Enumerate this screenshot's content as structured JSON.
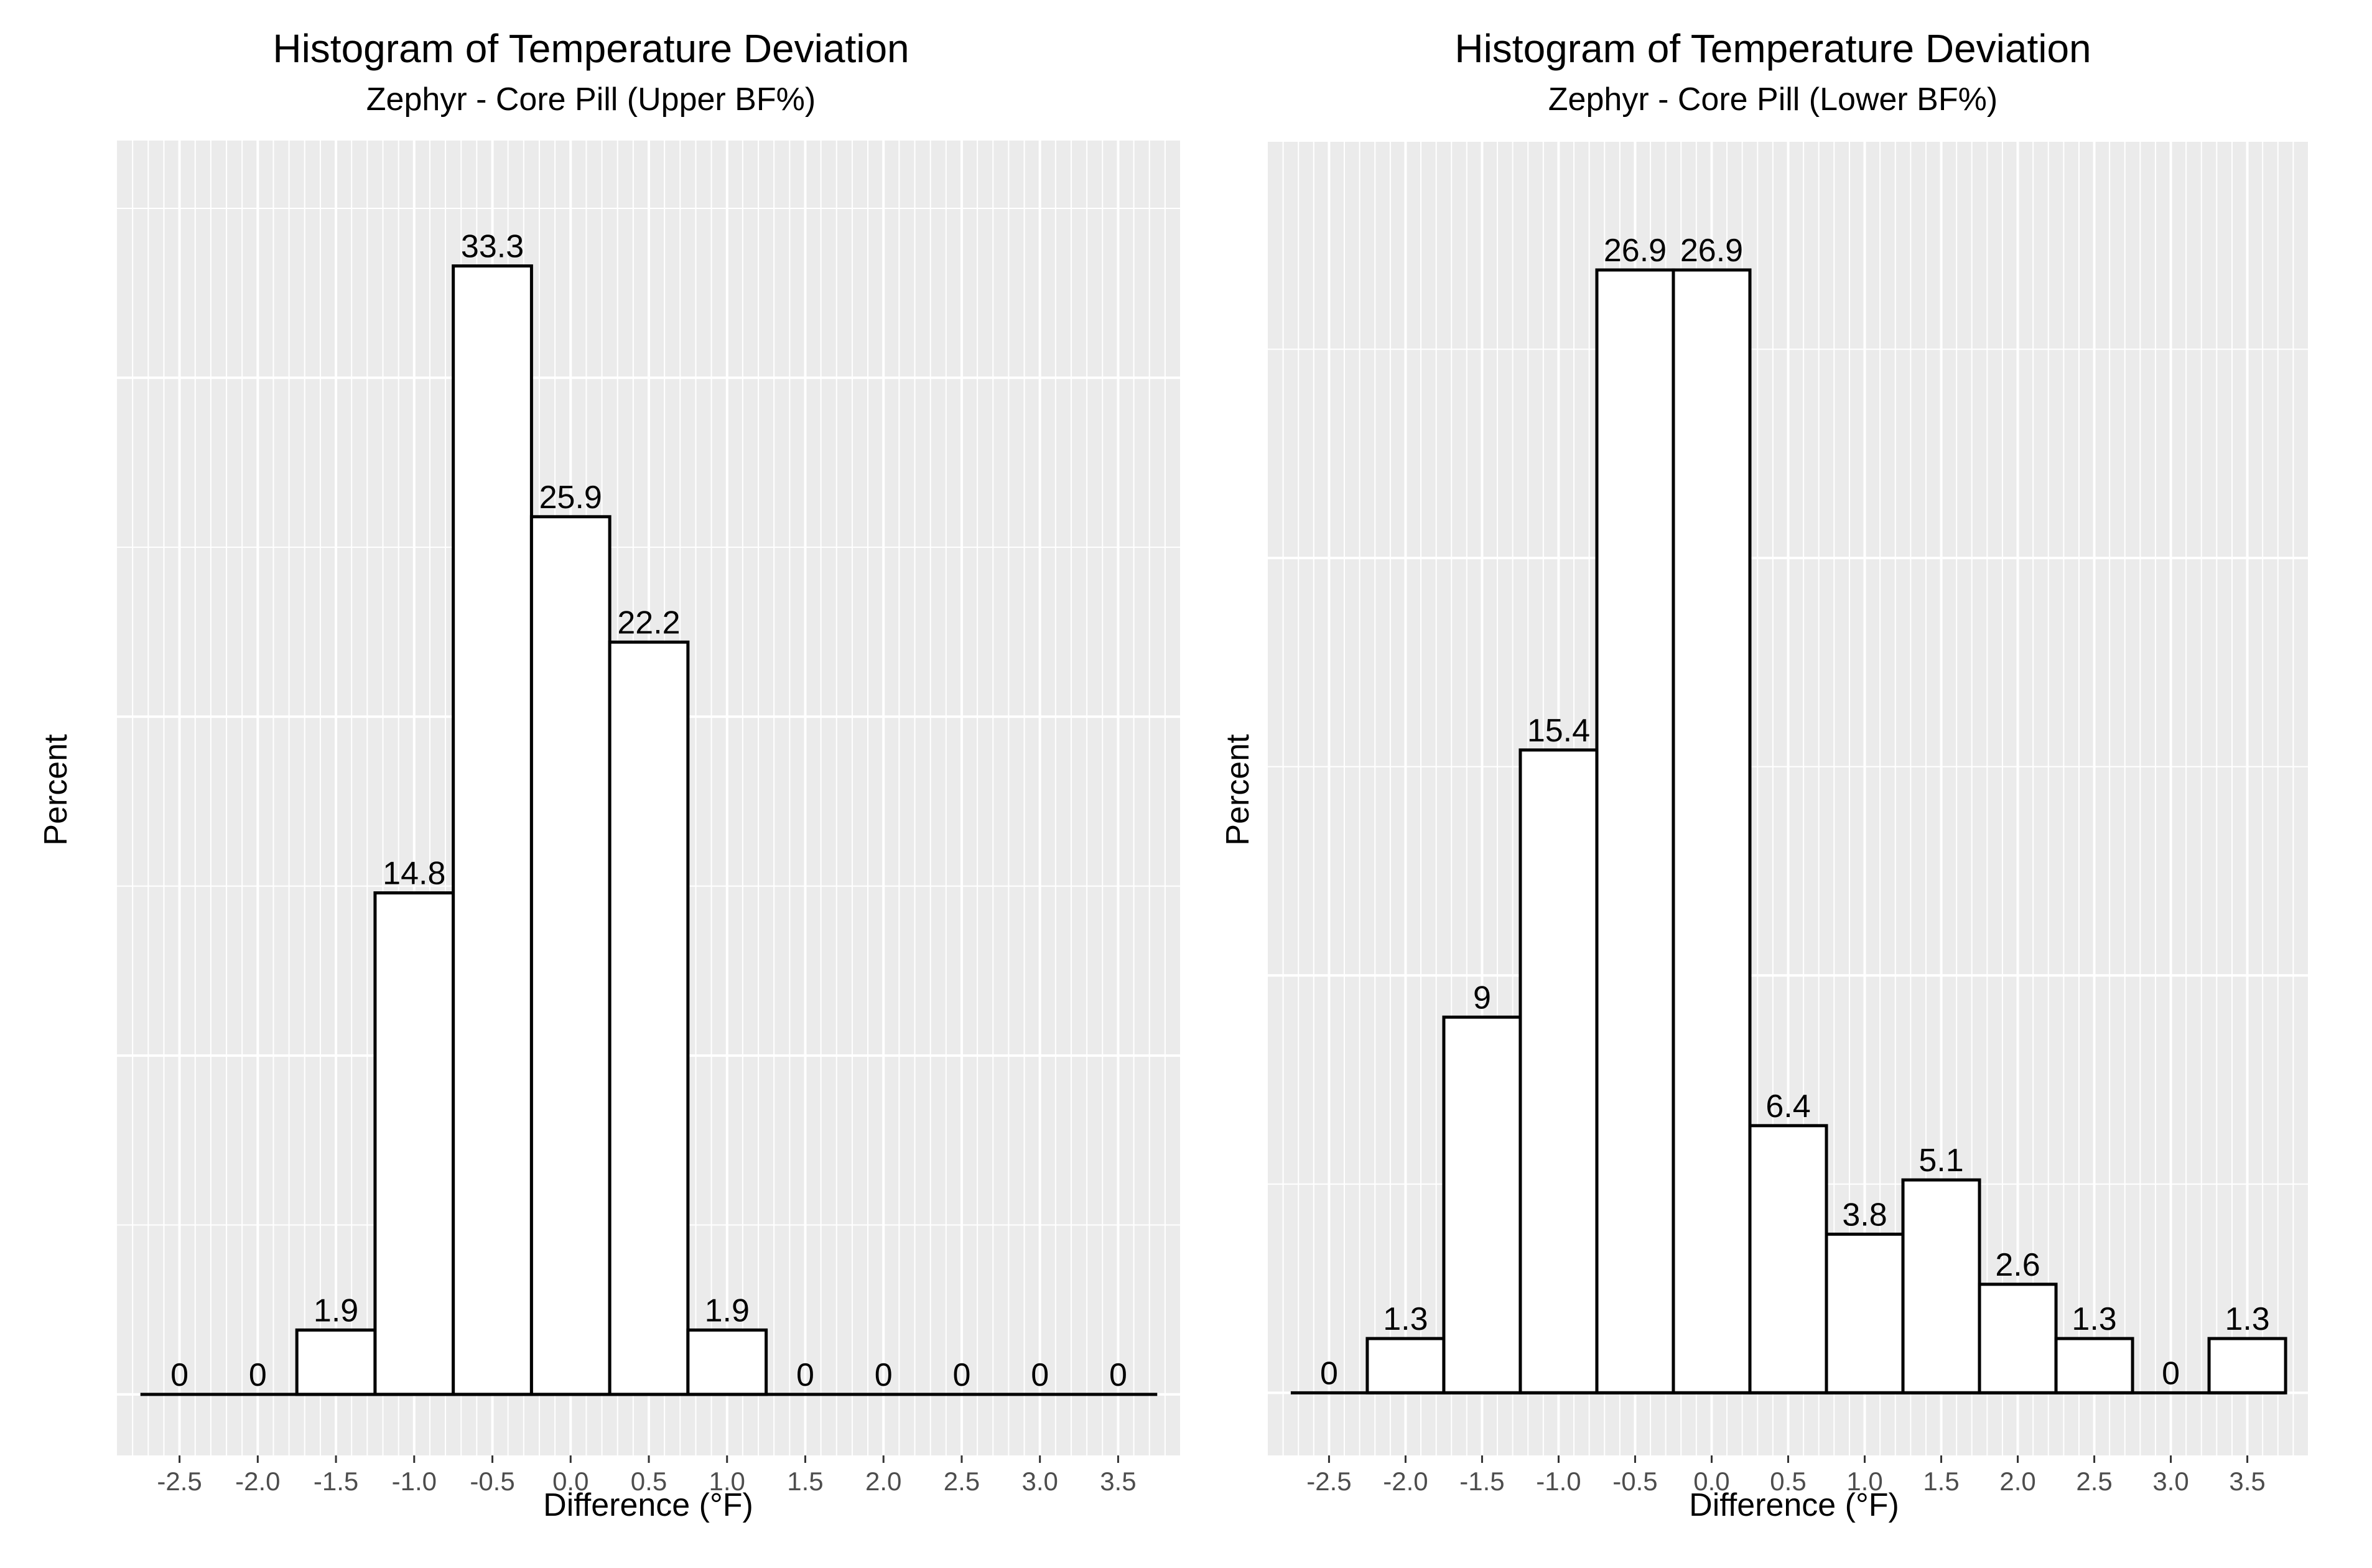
{
  "chart_data": [
    {
      "type": "bar",
      "title": "Histogram of Temperature Deviation",
      "subtitle": "Zephyr - Core Pill (Upper BF%)",
      "xlabel": "Difference (°F)",
      "ylabel": "Percent",
      "bin_width": 0.5,
      "xlim": [
        -2.9,
        3.9
      ],
      "ylim": [
        -1.8,
        37.0
      ],
      "grid": true,
      "x_ticks": [
        -2.5,
        -2.0,
        -1.5,
        -1.0,
        -0.5,
        0.0,
        0.5,
        1.0,
        1.5,
        2.0,
        2.5,
        3.0,
        3.5
      ],
      "tick_labels": [
        "-2.5",
        "-2.0",
        "-1.5",
        "-1.0",
        "-0.5",
        "0.0",
        "0.5",
        "1.0",
        "1.5",
        "2.0",
        "2.5",
        "3.0",
        "3.5"
      ],
      "categories": [
        -2.5,
        -2.0,
        -1.5,
        -1.0,
        -0.5,
        0.0,
        0.5,
        1.0,
        1.5,
        2.0,
        2.5,
        3.0,
        3.5
      ],
      "values": [
        0,
        0,
        1.9,
        14.8,
        33.3,
        25.9,
        22.2,
        1.9,
        0,
        0,
        0,
        0,
        0
      ],
      "value_labels": [
        "0",
        "0",
        "1.9",
        "14.8",
        "33.3",
        "25.9",
        "22.2",
        "1.9",
        "0",
        "0",
        "0",
        "0",
        "0"
      ]
    },
    {
      "type": "bar",
      "title": "Histogram of Temperature Deviation",
      "subtitle": "Zephyr - Core Pill (Lower BF%)",
      "xlabel": "Difference (°F)",
      "ylabel": "Percent",
      "bin_width": 0.5,
      "xlim": [
        -2.9,
        3.9
      ],
      "ylim": [
        -1.5,
        30.0
      ],
      "grid": true,
      "x_ticks": [
        -2.5,
        -2.0,
        -1.5,
        -1.0,
        -0.5,
        0.0,
        0.5,
        1.0,
        1.5,
        2.0,
        2.5,
        3.0,
        3.5
      ],
      "tick_labels": [
        "-2.5",
        "-2.0",
        "-1.5",
        "-1.0",
        "-0.5",
        "0.0",
        "0.5",
        "1.0",
        "1.5",
        "2.0",
        "2.5",
        "3.0",
        "3.5"
      ],
      "categories": [
        -2.5,
        -2.0,
        -1.5,
        -1.0,
        -0.5,
        0.0,
        0.5,
        1.0,
        1.5,
        2.0,
        2.5,
        3.0,
        3.5
      ],
      "values": [
        0,
        1.3,
        9,
        15.4,
        26.9,
        26.9,
        6.4,
        3.8,
        5.1,
        2.6,
        1.3,
        0,
        1.3
      ],
      "value_labels": [
        "0",
        "1.3",
        "9",
        "15.4",
        "26.9",
        "26.9",
        "6.4",
        "3.8",
        "5.1",
        "2.6",
        "1.3",
        "0",
        "1.3"
      ]
    }
  ]
}
